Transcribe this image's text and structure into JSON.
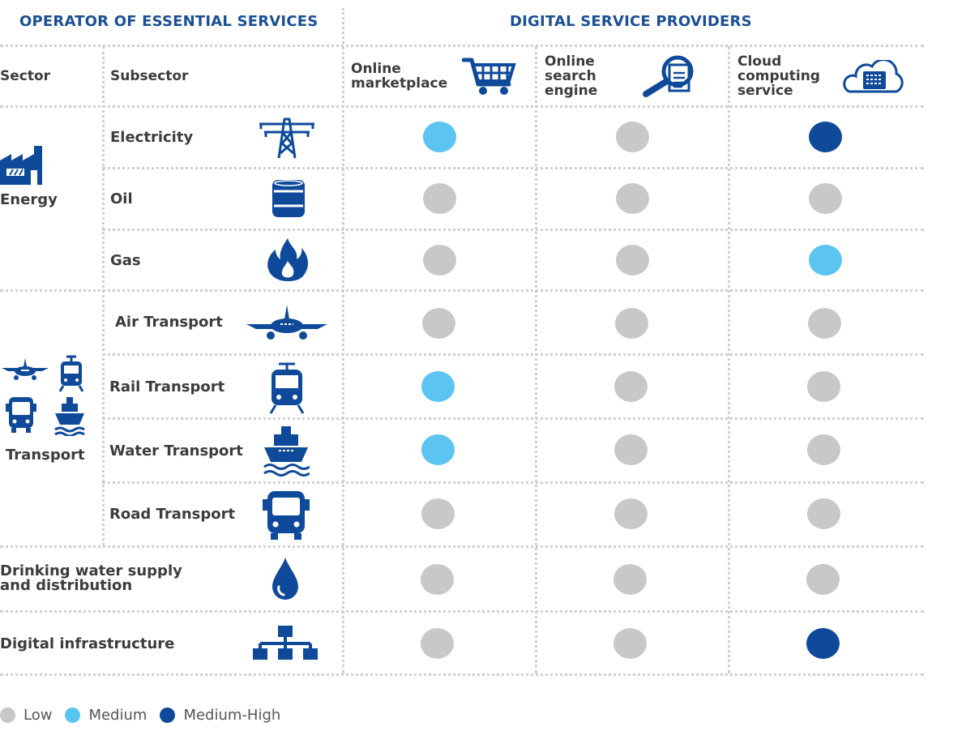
{
  "headers": {
    "oes": "OPERATOR OF ESSENTIAL SERVICES",
    "dsp": "DIGITAL SERVICE PROVIDERS"
  },
  "columns": {
    "sector": "Sector",
    "subsector": "Subsector",
    "marketplace": [
      "Online",
      "marketplace"
    ],
    "search": [
      "Online",
      "search",
      "engine"
    ],
    "cloud": [
      "Cloud",
      "computing",
      "service"
    ]
  },
  "sectors": {
    "energy": "Energy",
    "transport": "Transport",
    "water": [
      "Drinking water supply",
      "and distribution"
    ],
    "digital": "Digital infrastructure"
  },
  "rows": [
    {
      "label": "Electricity",
      "icon": "pylon-icon",
      "levels": [
        "Medium",
        "Low",
        "Medium-High"
      ]
    },
    {
      "label": "Oil",
      "icon": "oil-barrel-icon",
      "levels": [
        "Low",
        "Low",
        "Low"
      ]
    },
    {
      "label": "Gas",
      "icon": "flame-icon",
      "levels": [
        "Low",
        "Low",
        "Medium"
      ]
    },
    {
      "label": "Air Transport",
      "icon": "airplane-icon",
      "levels": [
        "Low",
        "Low",
        "Low"
      ]
    },
    {
      "label": "Rail Transport",
      "icon": "train-icon",
      "levels": [
        "Medium",
        "Low",
        "Low"
      ]
    },
    {
      "label": "Water Transport",
      "icon": "ship-icon",
      "levels": [
        "Medium",
        "Low",
        "Low"
      ]
    },
    {
      "label": "Road Transport",
      "icon": "bus-icon",
      "levels": [
        "Low",
        "Low",
        "Low"
      ]
    },
    {
      "label": "",
      "icon": "water-drop-icon",
      "levels": [
        "Low",
        "Low",
        "Low"
      ]
    },
    {
      "label": "",
      "icon": "network-icon",
      "levels": [
        "Low",
        "Low",
        "Medium-High"
      ]
    }
  ],
  "legend": [
    {
      "label": "Low",
      "color": "#c8c8c8"
    },
    {
      "label": "Medium",
      "color": "#5bc4f1"
    },
    {
      "label": "Medium-High",
      "color": "#0f4a9a"
    }
  ],
  "colors": {
    "Low": "#c8c8c8",
    "Medium": "#5bc4f1",
    "Medium-High": "#0f4a9a",
    "icon": "#0f4a9a",
    "header": "#1a4f95"
  }
}
